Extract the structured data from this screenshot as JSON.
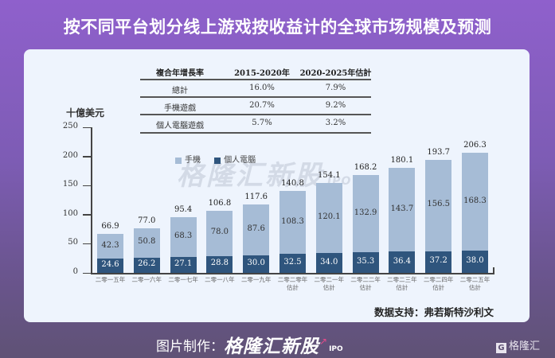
{
  "header": {
    "title": "按不同平台划分线上游戏按收益计的全球市场规模及预测"
  },
  "cagr_table": {
    "headers": [
      "複合年增長率",
      "2015-2020年",
      "2020-2025年估計"
    ],
    "rows": [
      [
        "總計",
        "16.0%",
        "7.9%"
      ],
      [
        "手機遊戲",
        "20.7%",
        "9.2%"
      ],
      [
        "個人電腦遊戲",
        "5.7%",
        "3.2%"
      ]
    ]
  },
  "chart_data": {
    "type": "bar",
    "stacked": true,
    "title": "按不同平台划分线上游戏按收益计的全球市场规模及预测",
    "ylabel": "十億美元",
    "xlabel": "",
    "ylim": [
      0,
      250
    ],
    "yticks": [
      "0",
      "50",
      "100",
      "150",
      "200",
      "250"
    ],
    "grid": false,
    "legend_position": "top-left inside plot",
    "categories": [
      "二零一五年",
      "二零一六年",
      "二零一七年",
      "二零一八年",
      "二零一九年",
      "二零二零年估計",
      "二零二一年估計",
      "二零二二年估計",
      "二零二三年估計",
      "二零二四年估計",
      "二零二五年估計"
    ],
    "category_lines": [
      [
        "二零一五年",
        ""
      ],
      [
        "二零一六年",
        ""
      ],
      [
        "二零一七年",
        ""
      ],
      [
        "二零一八年",
        ""
      ],
      [
        "二零一九年",
        ""
      ],
      [
        "二零二零年",
        "估計"
      ],
      [
        "二零二一年",
        "估計"
      ],
      [
        "二零二二年",
        "估計"
      ],
      [
        "二零二三年",
        "估計"
      ],
      [
        "二零二四年",
        "估計"
      ],
      [
        "二零二五年",
        "估計"
      ]
    ],
    "series": [
      {
        "name": "個人電腦",
        "color": "#2f557d",
        "values": [
          24.6,
          26.2,
          27.1,
          28.8,
          30.0,
          32.5,
          34.0,
          35.3,
          36.4,
          37.2,
          38.0
        ],
        "labels": [
          "24.6",
          "26.2",
          "27.1",
          "28.8",
          "30.0",
          "32.5",
          "34.0",
          "35.3",
          "36.4",
          "37.2",
          "38.0"
        ]
      },
      {
        "name": "手機",
        "color": "#a6bcd6",
        "values": [
          42.3,
          50.8,
          68.3,
          78.0,
          87.6,
          108.3,
          120.1,
          132.9,
          143.7,
          156.5,
          168.3
        ],
        "labels": [
          "42.3",
          "50.8",
          "68.3",
          "78.0",
          "87.6",
          "108.3",
          "120.1",
          "132.9",
          "143.7",
          "156.5",
          "168.3"
        ]
      }
    ],
    "totals": [
      66.9,
      77.0,
      95.4,
      106.8,
      117.6,
      140.8,
      154.1,
      168.2,
      180.1,
      193.7,
      206.3
    ],
    "total_labels": [
      "66.9",
      "77.0",
      "95.4",
      "106.8",
      "117.6",
      "140.8",
      "154.1",
      "168.2",
      "180.1",
      "193.7",
      "206.3"
    ]
  },
  "legend": {
    "items": [
      {
        "label": "手機",
        "color": "#a6bcd6"
      },
      {
        "label": "個人電腦",
        "color": "#2f557d"
      }
    ]
  },
  "watermark": {
    "text": "格隆汇新股",
    "suffix": "IPO"
  },
  "source": {
    "text": "数据支持：弗若斯特沙利文"
  },
  "footer": {
    "prefix": "图片制作：",
    "brand": "格隆汇新股",
    "suffix": "IPO",
    "logo_mark": "G",
    "logo_text": "格隆汇"
  }
}
